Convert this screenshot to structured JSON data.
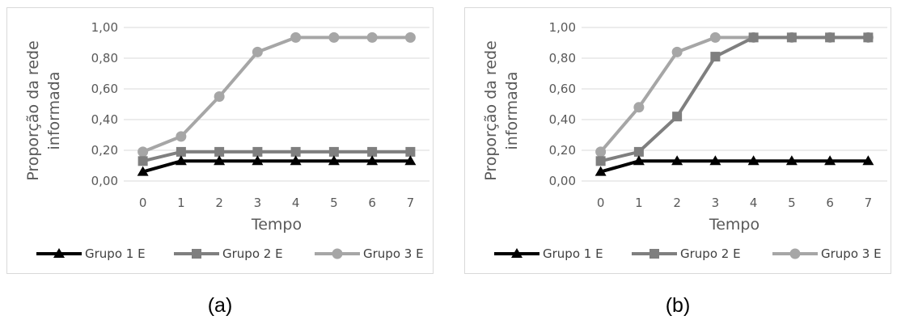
{
  "chart_data": [
    {
      "type": "line",
      "panel_label": "(a)",
      "title": "",
      "xlabel": "Tempo",
      "ylabel": "Proporção da rede informada",
      "x": [
        0,
        1,
        2,
        3,
        4,
        5,
        6,
        7
      ],
      "x_tick_labels": [
        "0",
        "1",
        "2",
        "3",
        "4",
        "5",
        "6",
        "7"
      ],
      "ylim": [
        0,
        1
      ],
      "y_ticks": [
        0,
        0.2,
        0.4,
        0.6,
        0.8,
        1.0
      ],
      "y_tick_labels": [
        "0,00",
        "0,20",
        "0,40",
        "0,60",
        "0,80",
        "1,00"
      ],
      "grid": true,
      "legend_position": "bottom",
      "series": [
        {
          "name": "Grupo 1 E",
          "color": "#000000",
          "marker": "triangle",
          "values": [
            0.06,
            0.13,
            0.13,
            0.13,
            0.13,
            0.13,
            0.13,
            0.13
          ]
        },
        {
          "name": "Grupo 2 E",
          "color": "#7f7f7f",
          "marker": "square",
          "values": [
            0.13,
            0.19,
            0.19,
            0.19,
            0.19,
            0.19,
            0.19,
            0.19
          ]
        },
        {
          "name": "Grupo 3 E",
          "color": "#a6a6a6",
          "marker": "circle",
          "values": [
            0.19,
            0.29,
            0.55,
            0.84,
            0.935,
            0.935,
            0.935,
            0.935
          ]
        }
      ]
    },
    {
      "type": "line",
      "panel_label": "(b)",
      "title": "",
      "xlabel": "Tempo",
      "ylabel": "Proporção da rede informada",
      "x": [
        0,
        1,
        2,
        3,
        4,
        5,
        6,
        7
      ],
      "x_tick_labels": [
        "0",
        "1",
        "2",
        "3",
        "4",
        "5",
        "6",
        "7"
      ],
      "ylim": [
        0,
        1
      ],
      "y_ticks": [
        0,
        0.2,
        0.4,
        0.6,
        0.8,
        1.0
      ],
      "y_tick_labels": [
        "0,00",
        "0,20",
        "0,40",
        "0,60",
        "0,80",
        "1,00"
      ],
      "grid": true,
      "legend_position": "bottom",
      "series": [
        {
          "name": "Grupo 1 E",
          "color": "#000000",
          "marker": "triangle",
          "values": [
            0.06,
            0.13,
            0.13,
            0.13,
            0.13,
            0.13,
            0.13,
            0.13
          ]
        },
        {
          "name": "Grupo 2 E",
          "color": "#7f7f7f",
          "marker": "square",
          "values": [
            0.13,
            0.19,
            0.42,
            0.81,
            0.935,
            0.935,
            0.935,
            0.935
          ]
        },
        {
          "name": "Grupo 3 E",
          "color": "#a6a6a6",
          "marker": "circle",
          "values": [
            0.19,
            0.48,
            0.84,
            0.935,
            0.935,
            0.935,
            0.935,
            0.935
          ]
        }
      ]
    }
  ]
}
